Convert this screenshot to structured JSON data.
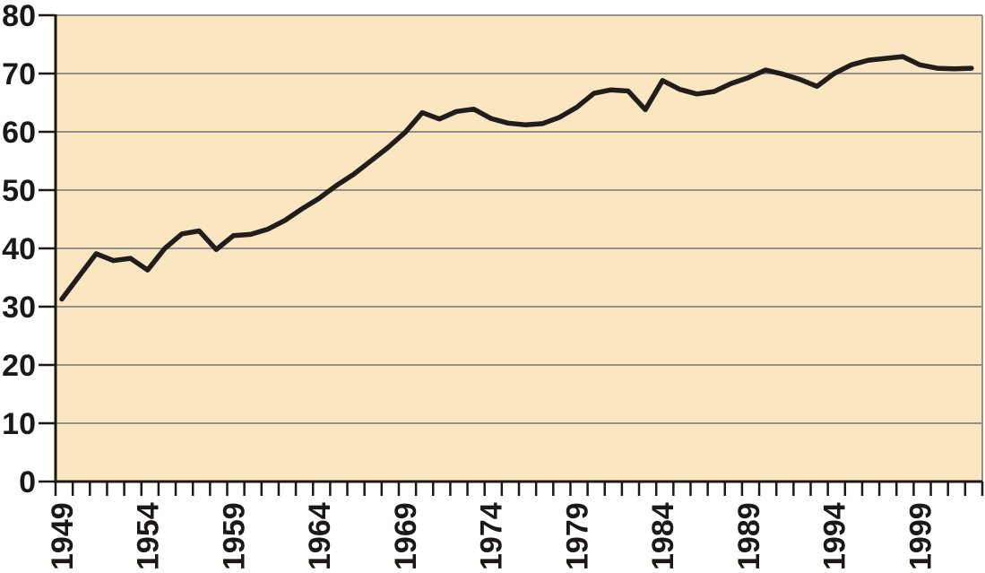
{
  "chart_data": {
    "type": "line",
    "title": "",
    "xlabel": "",
    "ylabel": "",
    "x": [
      1949,
      1950,
      1951,
      1952,
      1953,
      1954,
      1955,
      1956,
      1957,
      1958,
      1959,
      1960,
      1961,
      1962,
      1963,
      1964,
      1965,
      1966,
      1967,
      1968,
      1969,
      1970,
      1971,
      1972,
      1973,
      1974,
      1975,
      1976,
      1977,
      1978,
      1979,
      1980,
      1981,
      1982,
      1983,
      1984,
      1985,
      1986,
      1987,
      1988,
      1989,
      1990,
      1991,
      1992,
      1993,
      1994,
      1995,
      1996,
      1997,
      1998,
      1999,
      2000,
      2001,
      2002
    ],
    "values": [
      31.3,
      35.2,
      39.1,
      37.9,
      38.3,
      36.3,
      40.0,
      42.5,
      43.0,
      39.8,
      42.2,
      42.4,
      43.3,
      44.8,
      46.8,
      48.6,
      50.8,
      52.7,
      55.0,
      57.3,
      59.9,
      63.3,
      62.2,
      63.5,
      63.9,
      62.3,
      61.5,
      61.2,
      61.4,
      62.5,
      64.2,
      66.6,
      67.2,
      67.0,
      63.8,
      68.8,
      67.3,
      66.5,
      66.9,
      68.3,
      69.3,
      70.6,
      69.9,
      69.0,
      67.8,
      70.0,
      71.5,
      72.3,
      72.6,
      72.9,
      71.5,
      70.9,
      70.8,
      70.9
    ],
    "xlim": [
      1949,
      2003
    ],
    "ylim": [
      0,
      80
    ],
    "x_tick_labels": [
      "1949",
      "1954",
      "1959",
      "1964",
      "1969",
      "1974",
      "1979",
      "1984",
      "1989",
      "1994",
      "1999"
    ],
    "x_label_year_step": 5,
    "x_minor_tick_interval_years": 1,
    "y_tick_labels": [
      "0",
      "10",
      "20",
      "30",
      "40",
      "50",
      "60",
      "70",
      "80"
    ],
    "y_tick_step": 10,
    "grid": "horizontal",
    "legend_position": "none",
    "colors": {
      "page_bg": "#ffffff",
      "plot_bg": "#fbe6c2",
      "grid": "#94908a",
      "border": "#94908a",
      "axis": "#1b1816",
      "line": "#211d1b",
      "text": "#1b1816"
    }
  }
}
